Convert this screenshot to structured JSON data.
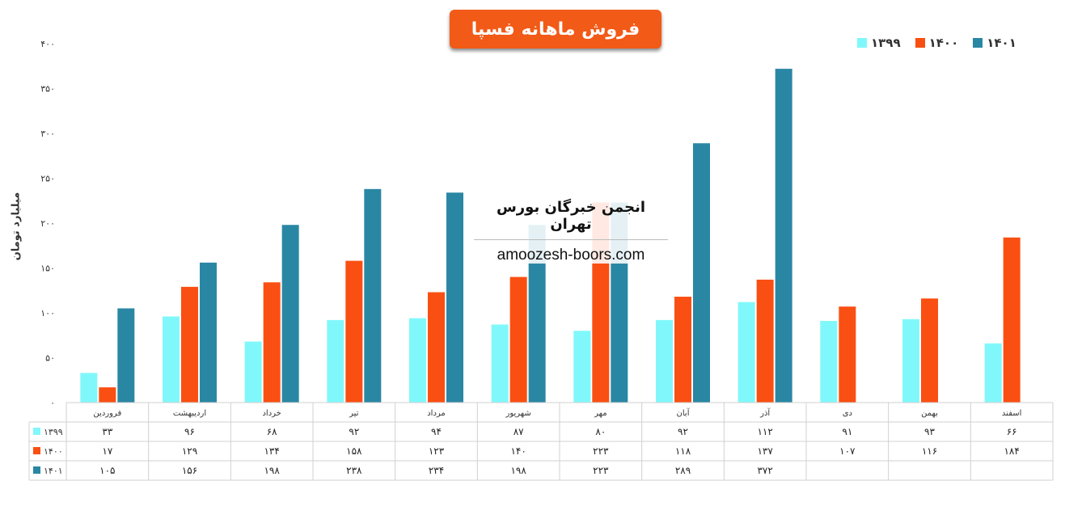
{
  "chart_data": {
    "type": "bar",
    "title": "فروش ماهانه فسپا",
    "ylabel": "میلیارد تومان",
    "ylim": [
      0,
      400
    ],
    "yticks": [
      "۰",
      "۵۰",
      "۱۰۰",
      "۱۵۰",
      "۲۰۰",
      "۲۵۰",
      "۳۰۰",
      "۳۵۰",
      "۴۰۰"
    ],
    "grid": false,
    "legend_placement": "top-right",
    "categories": [
      "فروردین",
      "اردیبهشت",
      "خرداد",
      "تیر",
      "مرداد",
      "شهریور",
      "مهر",
      "آبان",
      "آذر",
      "دی",
      "بهمن",
      "اسفند"
    ],
    "series": [
      {
        "name": "۱۳۹۹",
        "color": "#80f8fb",
        "values": [
          33,
          96,
          68,
          92,
          94,
          87,
          80,
          92,
          112,
          91,
          93,
          66
        ],
        "labels": [
          "۳۳",
          "۹۶",
          "۶۸",
          "۹۲",
          "۹۴",
          "۸۷",
          "۸۰",
          "۹۲",
          "۱۱۲",
          "۹۱",
          "۹۳",
          "۶۶"
        ]
      },
      {
        "name": "۱۴۰۰",
        "color": "#fa4f12",
        "values": [
          17,
          129,
          134,
          158,
          123,
          140,
          223,
          118,
          137,
          107,
          116,
          184
        ],
        "labels": [
          "۱۷",
          "۱۲۹",
          "۱۳۴",
          "۱۵۸",
          "۱۲۳",
          "۱۴۰",
          "۲۲۳",
          "۱۱۸",
          "۱۳۷",
          "۱۰۷",
          "۱۱۶",
          "۱۸۴"
        ]
      },
      {
        "name": "۱۴۰۱",
        "color": "#2a87a4",
        "values": [
          105,
          156,
          198,
          238,
          234,
          198,
          223,
          289,
          372,
          null,
          null,
          null
        ],
        "labels": [
          "۱۰۵",
          "۱۵۶",
          "۱۹۸",
          "۲۳۸",
          "۲۳۴",
          "۱۹۸",
          "۲۲۳",
          "۲۸۹",
          "۳۷۲",
          "",
          "",
          ""
        ]
      }
    ]
  },
  "watermark": {
    "title": "انجمن خبرگان بورس تهران",
    "url": "amoozesh-boors.com"
  }
}
